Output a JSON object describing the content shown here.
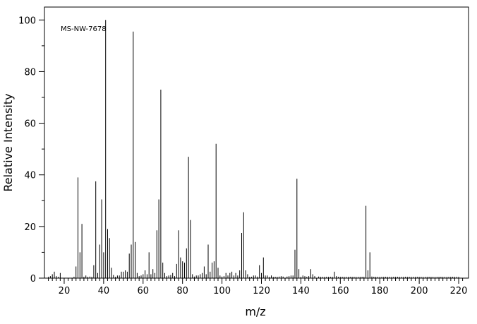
{
  "chart_data": {
    "type": "bar",
    "annotation": "MS-NW-7678",
    "xlabel": "m/z",
    "ylabel": "Relative Intensity",
    "xlim": [
      10,
      225
    ],
    "ylim": [
      0,
      105
    ],
    "x_ticks": [
      20,
      40,
      60,
      80,
      100,
      120,
      140,
      160,
      180,
      200,
      220
    ],
    "y_ticks": [
      0,
      20,
      40,
      60,
      80,
      100
    ],
    "grid": false,
    "legend": "none",
    "peaks": [
      [
        12,
        0.5
      ],
      [
        13,
        0.8
      ],
      [
        14,
        1.5
      ],
      [
        15,
        2.5
      ],
      [
        16,
        0.8
      ],
      [
        17,
        0.5
      ],
      [
        18,
        2.0
      ],
      [
        25,
        0.5
      ],
      [
        26,
        4.5
      ],
      [
        27,
        39
      ],
      [
        28,
        10
      ],
      [
        29,
        21
      ],
      [
        30,
        0.5
      ],
      [
        31,
        1.0
      ],
      [
        32,
        0.5
      ],
      [
        33,
        0.6
      ],
      [
        34,
        0.5
      ],
      [
        35,
        5
      ],
      [
        36,
        37.5
      ],
      [
        37,
        2
      ],
      [
        38,
        13
      ],
      [
        39,
        30.5
      ],
      [
        40,
        10
      ],
      [
        41,
        100
      ],
      [
        42,
        19
      ],
      [
        43,
        15.5
      ],
      [
        44,
        4
      ],
      [
        45,
        1.2
      ],
      [
        46,
        0.5
      ],
      [
        47,
        1.0
      ],
      [
        48,
        1.0
      ],
      [
        49,
        2.5
      ],
      [
        50,
        2.5
      ],
      [
        51,
        3
      ],
      [
        52,
        2.5
      ],
      [
        53,
        9.5
      ],
      [
        54,
        13
      ],
      [
        55,
        95.5
      ],
      [
        56,
        14
      ],
      [
        57,
        2
      ],
      [
        58,
        0.8
      ],
      [
        59,
        1
      ],
      [
        60,
        1.5
      ],
      [
        61,
        3
      ],
      [
        62,
        1.5
      ],
      [
        63,
        10
      ],
      [
        64,
        1.5
      ],
      [
        65,
        3.5
      ],
      [
        66,
        2
      ],
      [
        67,
        18.5
      ],
      [
        68,
        30.5
      ],
      [
        69,
        73
      ],
      [
        70,
        6
      ],
      [
        71,
        2
      ],
      [
        72,
        0.8
      ],
      [
        73,
        1
      ],
      [
        74,
        1.2
      ],
      [
        75,
        2
      ],
      [
        76,
        0.8
      ],
      [
        77,
        5.5
      ],
      [
        78,
        18.5
      ],
      [
        79,
        8
      ],
      [
        80,
        6.5
      ],
      [
        81,
        6
      ],
      [
        82,
        11.5
      ],
      [
        83,
        47
      ],
      [
        84,
        22.5
      ],
      [
        85,
        1.5
      ],
      [
        86,
        0.6
      ],
      [
        87,
        1
      ],
      [
        88,
        1
      ],
      [
        89,
        1.5
      ],
      [
        90,
        2
      ],
      [
        91,
        4.5
      ],
      [
        92,
        1.5
      ],
      [
        93,
        13
      ],
      [
        94,
        2.5
      ],
      [
        95,
        6
      ],
      [
        96,
        6.5
      ],
      [
        97,
        52
      ],
      [
        98,
        4
      ],
      [
        99,
        1
      ],
      [
        100,
        0.6
      ],
      [
        101,
        0.8
      ],
      [
        102,
        2
      ],
      [
        103,
        1
      ],
      [
        104,
        2
      ],
      [
        105,
        2.5
      ],
      [
        106,
        1
      ],
      [
        107,
        2
      ],
      [
        108,
        1
      ],
      [
        109,
        3
      ],
      [
        110,
        17.5
      ],
      [
        111,
        25.5
      ],
      [
        112,
        3
      ],
      [
        113,
        1.5
      ],
      [
        114,
        0.5
      ],
      [
        115,
        0.5
      ],
      [
        116,
        1
      ],
      [
        117,
        1
      ],
      [
        118,
        0.6
      ],
      [
        119,
        5
      ],
      [
        120,
        2
      ],
      [
        121,
        8
      ],
      [
        122,
        1
      ],
      [
        123,
        1
      ],
      [
        124,
        0.5
      ],
      [
        125,
        1
      ],
      [
        126,
        0.5
      ],
      [
        127,
        0.5
      ],
      [
        128,
        0.5
      ],
      [
        129,
        0.6
      ],
      [
        130,
        0.8
      ],
      [
        131,
        0.6
      ],
      [
        133,
        0.6
      ],
      [
        134,
        0.8
      ],
      [
        135,
        1
      ],
      [
        136,
        1
      ],
      [
        137,
        11
      ],
      [
        138,
        38.5
      ],
      [
        139,
        3.5
      ],
      [
        140,
        0.5
      ],
      [
        141,
        1
      ],
      [
        142,
        0.8
      ],
      [
        143,
        0.5
      ],
      [
        144,
        0.8
      ],
      [
        145,
        3.5
      ],
      [
        146,
        1.5
      ],
      [
        147,
        0.8
      ],
      [
        149,
        0.6
      ],
      [
        150,
        0.5
      ],
      [
        151,
        0.5
      ],
      [
        152,
        0.5
      ],
      [
        153,
        0.5
      ],
      [
        154,
        0.5
      ],
      [
        155,
        0.5
      ],
      [
        156,
        0.5
      ],
      [
        157,
        2.5
      ],
      [
        158,
        0.8
      ],
      [
        159,
        0.5
      ],
      [
        160,
        0.5
      ],
      [
        161,
        0.5
      ],
      [
        162,
        0.5
      ],
      [
        163,
        0.5
      ],
      [
        164,
        0.5
      ],
      [
        165,
        0.5
      ],
      [
        166,
        0.5
      ],
      [
        167,
        0.5
      ],
      [
        168,
        0.5
      ],
      [
        169,
        0.5
      ],
      [
        170,
        0.5
      ],
      [
        171,
        0.5
      ],
      [
        172,
        0.5
      ],
      [
        173,
        28
      ],
      [
        174,
        3
      ],
      [
        175,
        10
      ],
      [
        176,
        0.6
      ],
      [
        177,
        0.5
      ],
      [
        178,
        0.5
      ],
      [
        179,
        0.5
      ],
      [
        180,
        0.5
      ],
      [
        181,
        0.5
      ],
      [
        182,
        0.5
      ],
      [
        183,
        0.5
      ],
      [
        184,
        0.5
      ],
      [
        185,
        0.5
      ],
      [
        186,
        0.5
      ],
      [
        187,
        0.5
      ],
      [
        188,
        0.5
      ],
      [
        189,
        0.5
      ],
      [
        190,
        0.5
      ],
      [
        191,
        0.5
      ],
      [
        192,
        0.5
      ],
      [
        193,
        0.5
      ],
      [
        194,
        0.5
      ],
      [
        195,
        0.5
      ],
      [
        196,
        0.5
      ],
      [
        197,
        0.5
      ],
      [
        198,
        0.5
      ],
      [
        199,
        0.5
      ],
      [
        200,
        0.5
      ],
      [
        201,
        0.5
      ],
      [
        202,
        0.5
      ],
      [
        203,
        0.5
      ],
      [
        204,
        0.5
      ],
      [
        205,
        0.5
      ],
      [
        206,
        0.5
      ],
      [
        207,
        0.5
      ],
      [
        208,
        0.5
      ],
      [
        209,
        0.5
      ],
      [
        210,
        0.5
      ],
      [
        211,
        0.5
      ],
      [
        212,
        0.5
      ],
      [
        213,
        0.5
      ],
      [
        214,
        0.5
      ],
      [
        215,
        0.5
      ],
      [
        216,
        0.5
      ],
      [
        217,
        0.5
      ],
      [
        218,
        0.5
      ],
      [
        219,
        0.5
      ],
      [
        220,
        0.5
      ]
    ]
  }
}
